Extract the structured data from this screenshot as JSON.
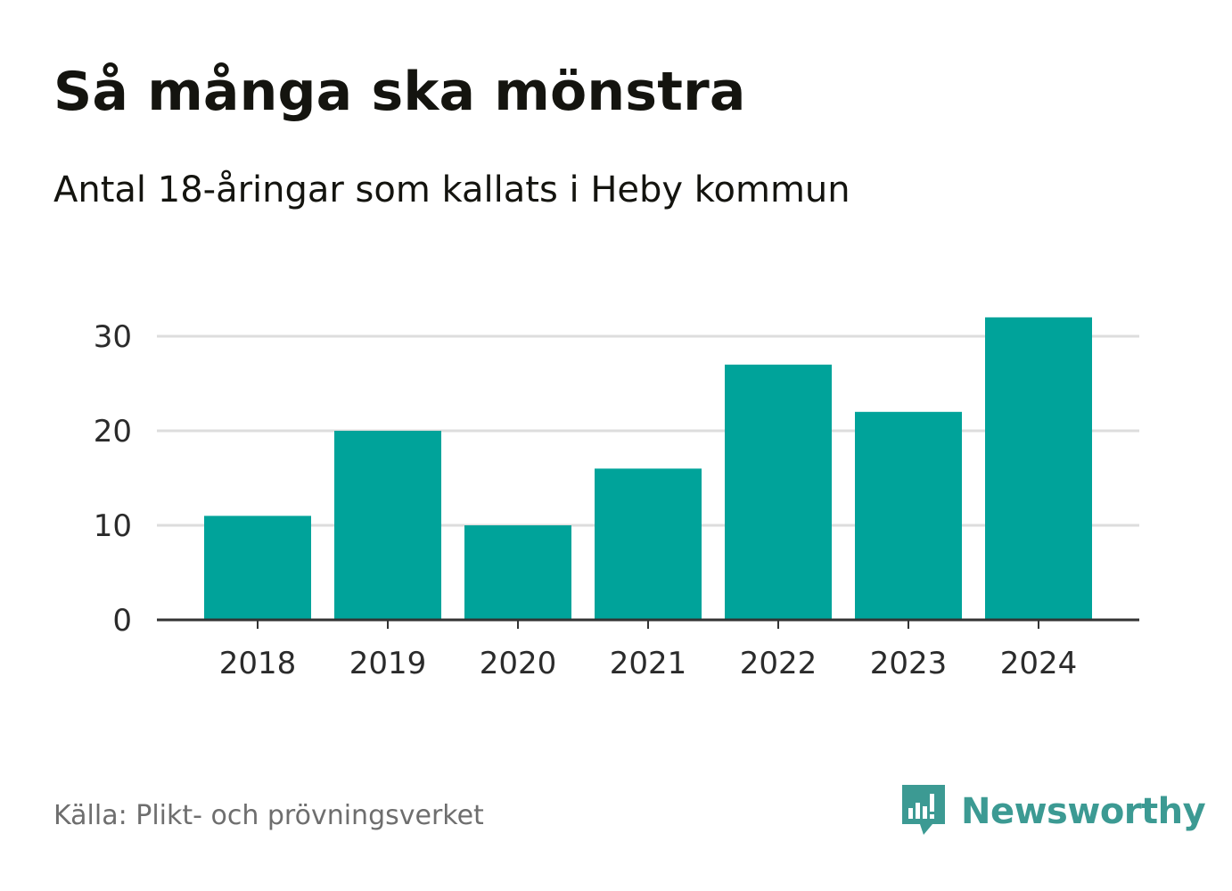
{
  "header": {
    "title": "Så många ska mönstra",
    "subtitle": "Antal 18-åringar som kallats i Heby kommun"
  },
  "footer": {
    "source": "Källa: Plikt- och prövningsverket",
    "brand_name": "Newsworthy"
  },
  "colors": {
    "bar": "#00a39a",
    "grid": "#dddddd",
    "axis": "#333333",
    "brand": "#3c9a93"
  },
  "icons": {
    "brand_logo": "newsworthy-chart-bubble-icon"
  },
  "chart_data": {
    "type": "bar",
    "title": "Så många ska mönstra",
    "subtitle": "Antal 18-åringar som kallats i Heby kommun",
    "xlabel": "",
    "ylabel": "",
    "categories": [
      "2018",
      "2019",
      "2020",
      "2021",
      "2022",
      "2023",
      "2024"
    ],
    "values": [
      11,
      20,
      10,
      16,
      27,
      22,
      32
    ],
    "ylim": [
      0,
      32
    ],
    "yticks": [
      0,
      10,
      20,
      30
    ],
    "grid": true,
    "legend": "none"
  }
}
